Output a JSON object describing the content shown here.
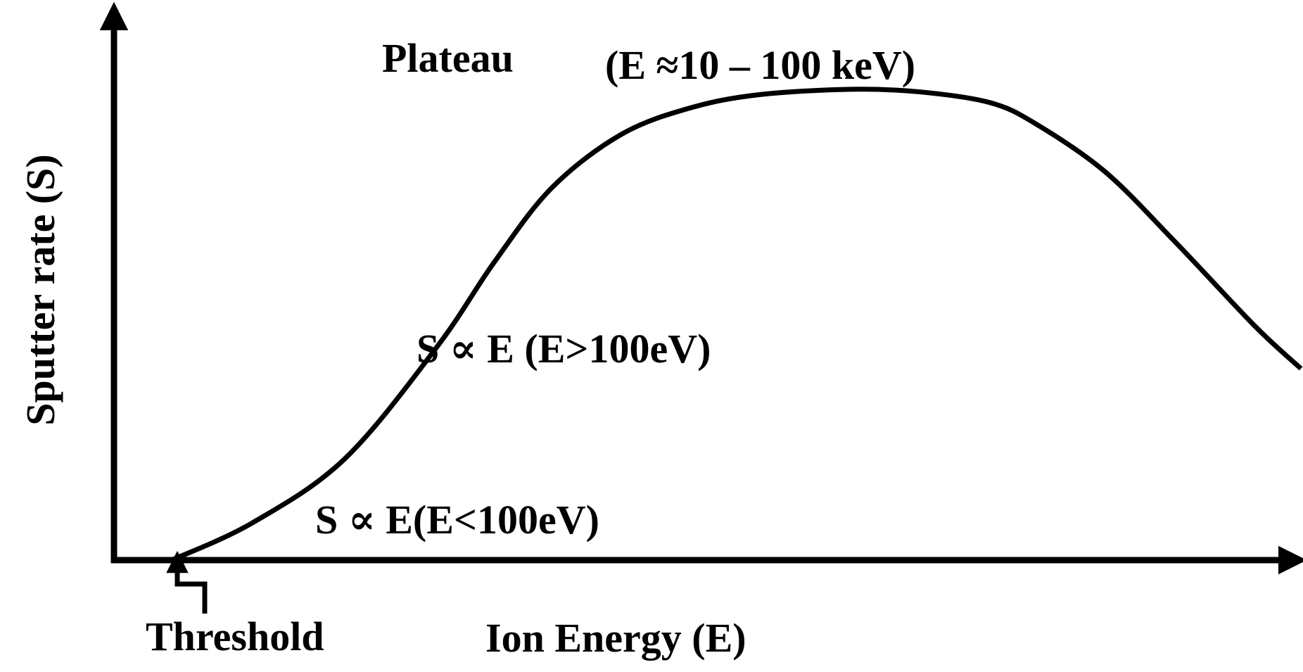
{
  "colors": {
    "ink": "#000000",
    "background": "#ffffff"
  },
  "chart_data": {
    "type": "line",
    "title": "",
    "xlabel": "Ion Energy (E)",
    "ylabel": "Sputter rate (S)",
    "grid": false,
    "legend": "none",
    "ticks": "none",
    "xlim": [
      0,
      1000
    ],
    "ylim": [
      0,
      1000
    ],
    "series": [
      {
        "x": [
          50,
          120,
          200,
          280,
          330,
          380,
          440,
          500,
          560,
          640,
          700,
          760,
          800,
          860,
          920,
          990,
          1030
        ],
        "y": [
          0,
          70,
          190,
          400,
          560,
          700,
          800,
          850,
          875,
          885,
          880,
          860,
          820,
          730,
          600,
          440,
          360
        ]
      }
    ],
    "annotations": {
      "plateau": "Plateau",
      "plateau_range": "(E ≈10 – 100 keV)",
      "linear_region": "S ∝ E (E>100eV)",
      "low_region": "S ∝ E(E<100eV)",
      "threshold": "Threshold"
    }
  }
}
